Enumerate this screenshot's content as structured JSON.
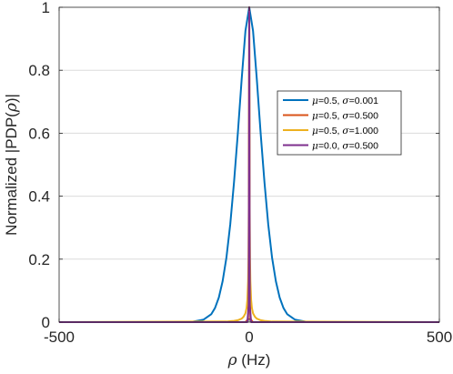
{
  "chart_data": {
    "type": "line",
    "title": "",
    "xlabel": {
      "symbol": "ρ",
      "rest": " (Hz)"
    },
    "ylabel": {
      "prefix": "Normalized |PDP(",
      "symbol": "ρ",
      "suffix": ")|"
    },
    "xlim": [
      -500,
      500
    ],
    "ylim": [
      0,
      1
    ],
    "xticks": [
      -500,
      0,
      500
    ],
    "xtick_labels": [
      "-500",
      "0",
      "500"
    ],
    "yticks": [
      0,
      0.2,
      0.4,
      0.6,
      0.8,
      1
    ],
    "ytick_labels": [
      "0",
      "0.2",
      "0.4",
      "0.6",
      "0.8",
      "1"
    ],
    "grid": "horizontal",
    "legend_position": "right",
    "series": [
      {
        "name": "μ=0.5, σ=0.001",
        "name_parts": {
          "mu_val": "=0.5, ",
          "sigma_val": "=0.001"
        },
        "color": "#0072BD",
        "x": [
          -500,
          -200,
          -150,
          -120,
          -100,
          -90,
          -80,
          -70,
          -60,
          -50,
          -40,
          -30,
          -20,
          -10,
          0,
          10,
          20,
          30,
          40,
          50,
          60,
          70,
          80,
          90,
          100,
          120,
          150,
          200,
          500
        ],
        "y": [
          0,
          0,
          0.001,
          0.008,
          0.025,
          0.045,
          0.078,
          0.13,
          0.205,
          0.31,
          0.445,
          0.6,
          0.77,
          0.925,
          1,
          0.925,
          0.77,
          0.6,
          0.445,
          0.31,
          0.205,
          0.13,
          0.078,
          0.045,
          0.025,
          0.008,
          0.001,
          0,
          0
        ]
      },
      {
        "name": "μ=0.5, σ=0.500",
        "name_parts": {
          "mu_val": "=0.5, ",
          "sigma_val": "=0.500"
        },
        "color": "#D95319",
        "x": [
          -500,
          -10,
          -3,
          -1.5,
          -0.5,
          0,
          0.5,
          1.5,
          3,
          10,
          500
        ],
        "y": [
          0,
          0,
          0.01,
          0.1,
          0.7,
          1,
          0.7,
          0.1,
          0.01,
          0,
          0
        ]
      },
      {
        "name": "μ=0.5, σ=1.000",
        "name_parts": {
          "mu_val": "=0.5, ",
          "sigma_val": "=1.000"
        },
        "color": "#EDB120",
        "x": [
          -500,
          -60,
          -40,
          -30,
          -20,
          -15,
          -10,
          -7,
          -5,
          -3,
          -2,
          -1,
          0,
          1,
          2,
          3,
          5,
          7,
          10,
          15,
          20,
          30,
          40,
          60,
          500
        ],
        "y": [
          0,
          0.002,
          0.004,
          0.006,
          0.011,
          0.017,
          0.028,
          0.045,
          0.07,
          0.13,
          0.2,
          0.4,
          1,
          0.4,
          0.2,
          0.13,
          0.07,
          0.045,
          0.028,
          0.017,
          0.011,
          0.006,
          0.004,
          0.002,
          0
        ]
      },
      {
        "name": "μ=0.0, σ=0.500",
        "name_parts": {
          "mu_val": "=0.0, ",
          "sigma_val": "=0.500"
        },
        "color": "#7E2F8E",
        "x": [
          -500,
          -5,
          -1.5,
          -0.5,
          0,
          0.5,
          1.5,
          5,
          500
        ],
        "y": [
          0,
          0,
          0.05,
          0.6,
          1,
          0.6,
          0.05,
          0,
          0
        ]
      }
    ],
    "legend_symbols": {
      "mu": "μ",
      "sigma": "σ"
    }
  }
}
